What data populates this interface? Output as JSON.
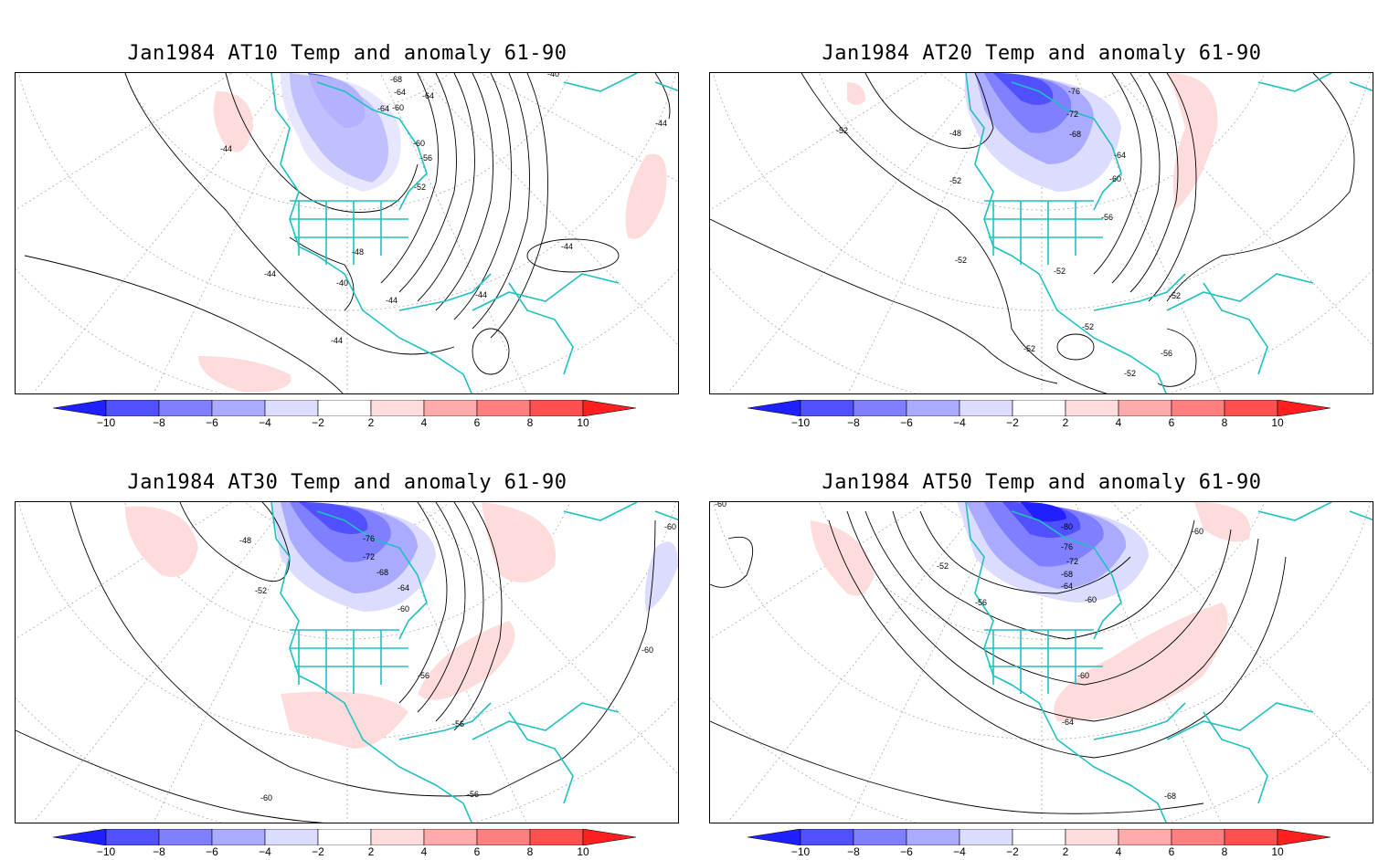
{
  "panels": [
    {
      "title": "Jan1984 AT10 Temp and anomaly 61-90",
      "contour_labels": [
        "-68",
        "-64",
        "-64",
        "-60",
        "-64",
        "-60",
        "-56",
        "-52",
        "-48",
        "-44",
        "-44",
        "-44",
        "-40",
        "-44",
        "-44",
        "-44",
        "-44",
        "-40"
      ]
    },
    {
      "title": "Jan1984 AT20 Temp and anomaly 61-90",
      "contour_labels": [
        "-52",
        "-76",
        "-72",
        "-68",
        "-64",
        "-60",
        "-56",
        "-52",
        "-48",
        "-52",
        "-52",
        "-52",
        "-52",
        "-52",
        "-52",
        "-56",
        "-52"
      ]
    },
    {
      "title": "Jan1984 AT30 Temp and anomaly 61-90",
      "contour_labels": [
        "-76",
        "-72",
        "-68",
        "-64",
        "-60",
        "-48",
        "-52",
        "-56",
        "-56",
        "-56",
        "-60",
        "-60",
        "-60"
      ]
    },
    {
      "title": "Jan1984 AT50 Temp and anomaly 61-90",
      "contour_labels": [
        "-80",
        "-76",
        "-72",
        "-68",
        "-64",
        "-60",
        "-52",
        "-56",
        "-60",
        "-60",
        "-64",
        "-68",
        "-60"
      ]
    }
  ],
  "colorbar": {
    "ticks": [
      "−10",
      "−8",
      "−6",
      "−4",
      "−2",
      "2",
      "4",
      "6",
      "8",
      "10"
    ],
    "colors": [
      "#1f1fff",
      "#5050ff",
      "#7f7fff",
      "#aaaaff",
      "#dcdcff",
      "#ffffff",
      "#ffdcdc",
      "#ffaaaa",
      "#ff7f7f",
      "#ff5050",
      "#ff1f1f"
    ]
  },
  "style": {
    "coastline_color": "#20c0c0",
    "contour_color": "#000000",
    "grid_color": "#999999"
  }
}
